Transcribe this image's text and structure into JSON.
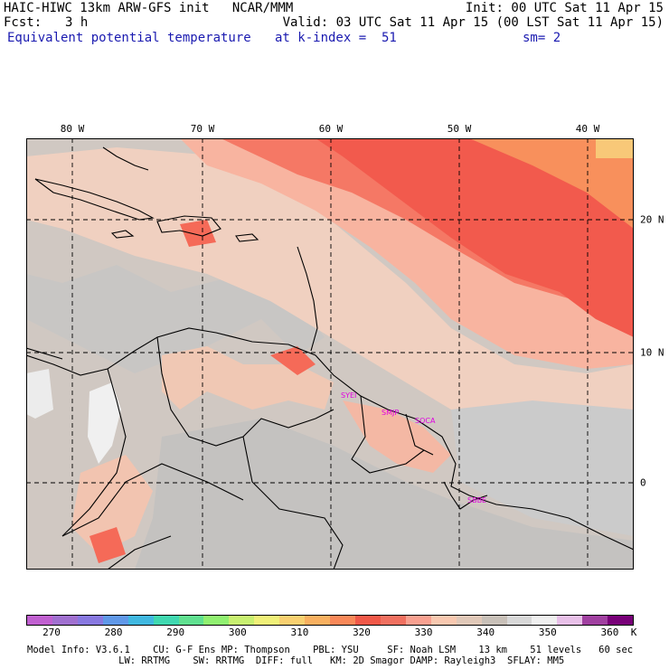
{
  "header": {
    "line1_left": "HAIC-HIWC 13km ARW-GFS init   NCAR/MMM",
    "line1_right": "Init: 00 UTC Sat 11 Apr 15",
    "fcst_label": "Fcst:",
    "fcst_value": "3 h",
    "valid": "Valid: 03 UTC Sat 11 Apr 15 (00 LST Sat 11 Apr 15)",
    "field": "Equivalent potential temperature",
    "level": "at k-index =  51",
    "smoothing": "sm= 2"
  },
  "map": {
    "lon_labels": [
      "80 W",
      "70 W",
      "60 W",
      "50 W",
      "40 W"
    ],
    "lat_labels": [
      "20 N",
      "10 N",
      "0"
    ],
    "stations": [
      "SYEI",
      "SMJP",
      "SOCA",
      "SBBE"
    ],
    "land_border_color": "#000000",
    "grid_line_color": "#000000"
  },
  "colorbar": {
    "colors": [
      "#c060d0",
      "#a070d0",
      "#8878e0",
      "#6098e8",
      "#40b8e0",
      "#40d8b0",
      "#60e090",
      "#90f070",
      "#c8f070",
      "#f0f078",
      "#f8d070",
      "#f8b060",
      "#f88858",
      "#f05848",
      "#f07060",
      "#f8a090",
      "#f8c8b0",
      "#e0c8b8",
      "#c8c0b8",
      "#d8d8d8",
      "#f0f0f0",
      "#e8c0e8",
      "#a040a0",
      "#780078"
    ],
    "labels": [
      "270",
      "280",
      "290",
      "300",
      "310",
      "320",
      "330",
      "340",
      "350",
      "360"
    ],
    "unit": "K"
  },
  "model_info": {
    "line1": "Model Info: V3.6.1    CU: G-F Ens MP: Thompson    PBL: YSU     SF: Noah LSM    13 km    51 levels   60 sec",
    "line2": "                LW: RRTMG    SW: RRTMG  DIFF: full   KM: 2D Smagor DAMP: Rayleigh3  SFLAY: MM5"
  }
}
